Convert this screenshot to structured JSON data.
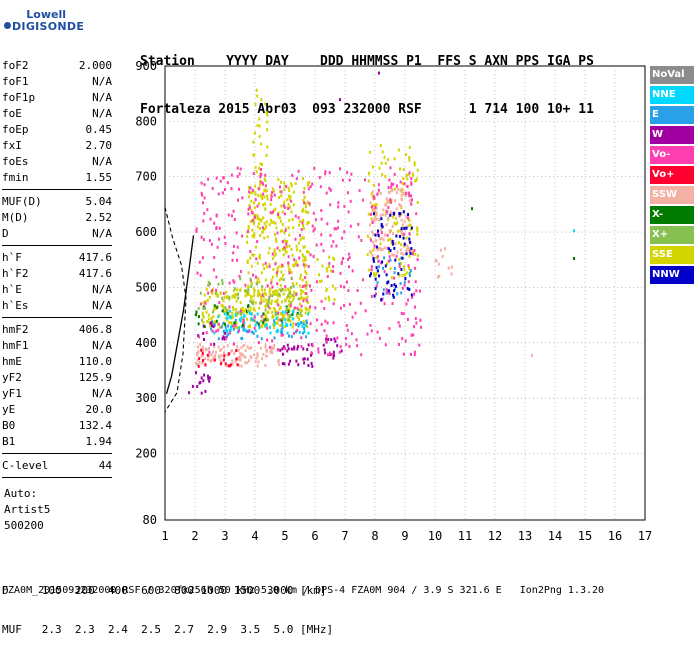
{
  "logo": {
    "line1": "Lowell",
    "line2": "DIGISONDE"
  },
  "header": {
    "labels": "Station    YYYY DAY    DDD HHMMSS P1  FFS S AXN PPS IGA PS",
    "values": "Fortaleza 2015 Abr03  093 232000 RSF      1 714 100 10+ 11"
  },
  "params": {
    "g1": [
      {
        "label": "foF2",
        "value": "2.000"
      },
      {
        "label": "foF1",
        "value": "N/A"
      },
      {
        "label": "foF1p",
        "value": "N/A"
      },
      {
        "label": "foE",
        "value": "N/A"
      },
      {
        "label": "foEp",
        "value": "0.45"
      },
      {
        "label": "fxI",
        "value": "2.70"
      },
      {
        "label": "foEs",
        "value": "N/A"
      },
      {
        "label": "fmin",
        "value": "1.55"
      }
    ],
    "g2": [
      {
        "label": "MUF(D)",
        "value": "5.04"
      },
      {
        "label": "M(D)",
        "value": "2.52"
      },
      {
        "label": "D",
        "value": "N/A"
      }
    ],
    "g3": [
      {
        "label": "h`F",
        "value": "417.6"
      },
      {
        "label": "h`F2",
        "value": "417.6"
      },
      {
        "label": "h`E",
        "value": "N/A"
      },
      {
        "label": "h`Es",
        "value": "N/A"
      }
    ],
    "g4": [
      {
        "label": "hmF2",
        "value": "406.8"
      },
      {
        "label": "hmF1",
        "value": "N/A"
      },
      {
        "label": "hmE",
        "value": "110.0"
      },
      {
        "label": "yF2",
        "value": "125.9"
      },
      {
        "label": "yF1",
        "value": "N/A"
      },
      {
        "label": "yE",
        "value": "20.0"
      },
      {
        "label": "B0",
        "value": "132.4"
      },
      {
        "label": "B1",
        "value": "1.94"
      }
    ],
    "g5": [
      {
        "label": "C-level",
        "value": "44"
      }
    ],
    "auto": [
      "Auto:",
      "Artist5",
      "500200"
    ]
  },
  "legend": [
    {
      "label": "NoVal",
      "color": "#8c8c8c"
    },
    {
      "label": "NNE",
      "color": "#00d8ff"
    },
    {
      "label": "E",
      "color": "#2aa0e8"
    },
    {
      "label": "W",
      "color": "#a000a0"
    },
    {
      "label": "Vo-",
      "color": "#ff3fb0"
    },
    {
      "label": "Vo+",
      "color": "#ff0030"
    },
    {
      "label": "SSW",
      "color": "#f4b0a4"
    },
    {
      "label": "X-",
      "color": "#007a00"
    },
    {
      "label": "X+",
      "color": "#86c050"
    },
    {
      "label": "SSE",
      "color": "#d4d400"
    },
    {
      "label": "NNW",
      "color": "#0000c8"
    }
  ],
  "footer": {
    "d_line": "D     100  200  400  600  800 1000 1500 3000 [km]",
    "muf_line": "MUF   2.3  2.3  2.4  2.5  2.7  2.9  3.5  5.0 [MHz]",
    "file_line": "FZA0M_2015093232000.RSF / 320fx256h 50 kHz 5.0 km / DPS-4 FZA0M 904 / 3.9 S 321.6 E   Ion2Png 1.3.20"
  },
  "chart_data": {
    "type": "scatter",
    "title": "",
    "xlabel": "",
    "ylabel": "",
    "xlim": [
      1,
      17
    ],
    "ylim": [
      80,
      900
    ],
    "x_ticks": [
      1,
      2,
      3,
      4,
      5,
      6,
      7,
      8,
      9,
      10,
      11,
      12,
      13,
      14,
      15,
      16,
      17
    ],
    "y_ticks": [
      80,
      200,
      300,
      400,
      500,
      600,
      700,
      800,
      900
    ],
    "grid": "dotted",
    "legend_position": "right",
    "series": [
      {
        "name": "SSE",
        "color": "#d4d400",
        "clusters": [
          {
            "x": [
              2.2,
              5.8
            ],
            "y": [
              430,
              500
            ],
            "weight": 0.9
          },
          {
            "x": [
              3.7,
              5.8
            ],
            "y": [
              480,
              700
            ],
            "weight": 0.5
          },
          {
            "x": [
              3.9,
              4.4
            ],
            "y": [
              600,
              870
            ],
            "weight": 0.3
          },
          {
            "x": [
              6.0,
              6.7
            ],
            "y": [
              480,
              560
            ],
            "weight": 0.3
          },
          {
            "x": [
              7.7,
              9.4
            ],
            "y": [
              520,
              760
            ],
            "weight": 0.25
          }
        ]
      },
      {
        "name": "NNE",
        "color": "#00d8ff",
        "clusters": [
          {
            "x": [
              2.6,
              5.8
            ],
            "y": [
              420,
              460
            ],
            "weight": 0.5
          }
        ]
      },
      {
        "name": "E",
        "color": "#2aa0e8",
        "clusters": [
          {
            "x": [
              2.4,
              5.8
            ],
            "y": [
              410,
              445
            ],
            "weight": 0.3
          },
          {
            "x": [
              7.9,
              9.2
            ],
            "y": [
              490,
              560
            ],
            "weight": 0.2
          }
        ]
      },
      {
        "name": "SSW",
        "color": "#f4b0a4",
        "clusters": [
          {
            "x": [
              2.0,
              4.8
            ],
            "y": [
              360,
              400
            ],
            "weight": 0.9
          },
          {
            "x": [
              7.8,
              9.2
            ],
            "y": [
              560,
              680
            ],
            "weight": 0.6
          },
          {
            "x": [
              9.8,
              10.6
            ],
            "y": [
              520,
              580
            ],
            "weight": 0.2
          }
        ]
      },
      {
        "name": "Vo+",
        "color": "#ff0030",
        "clusters": [
          {
            "x": [
              2.0,
              3.4
            ],
            "y": [
              360,
              390
            ],
            "weight": 0.4
          }
        ]
      },
      {
        "name": "W",
        "color": "#a000a0",
        "clusters": [
          {
            "x": [
              1.7,
              2.5
            ],
            "y": [
              310,
              350
            ],
            "weight": 0.4
          },
          {
            "x": [
              4.8,
              5.9
            ],
            "y": [
              360,
              400
            ],
            "weight": 0.6
          },
          {
            "x": [
              6.2,
              7.0
            ],
            "y": [
              370,
              410
            ],
            "weight": 0.4
          },
          {
            "x": [
              2.0,
              3.0
            ],
            "y": [
              400,
              440
            ],
            "weight": 0.3
          }
        ]
      },
      {
        "name": "Vo-",
        "color": "#ff3fb0",
        "clusters": [
          {
            "x": [
              2.0,
              9.5
            ],
            "y": [
              380,
              720
            ],
            "weight": 0.15
          }
        ]
      },
      {
        "name": "NNW",
        "color": "#0000c8",
        "clusters": [
          {
            "x": [
              7.8,
              9.2
            ],
            "y": [
              480,
              640
            ],
            "weight": 0.25
          }
        ]
      },
      {
        "name": "X-",
        "color": "#007a00",
        "clusters": [
          {
            "x": [
              1.8,
              5.5
            ],
            "y": [
              430,
              470
            ],
            "weight": 0.15
          }
        ]
      },
      {
        "name": "X+",
        "color": "#86c050",
        "clusters": [
          {
            "x": [
              2.0,
              5.5
            ],
            "y": [
              440,
              520
            ],
            "weight": 0.2
          }
        ]
      }
    ],
    "trace_solid": [
      [
        1.95,
        594
      ],
      [
        1.82,
        540
      ],
      [
        1.62,
        460
      ],
      [
        1.42,
        400
      ],
      [
        1.22,
        340
      ],
      [
        1.05,
        308
      ]
    ],
    "trace_dashed": [
      [
        1.0,
        645
      ],
      [
        1.25,
        590
      ],
      [
        1.55,
        540
      ],
      [
        1.7,
        480
      ],
      [
        1.6,
        380
      ],
      [
        1.4,
        310
      ],
      [
        1.0,
        275
      ]
    ],
    "isolated_points": [
      {
        "x": 11.2,
        "y": 645,
        "color": "#007a00"
      },
      {
        "x": 14.6,
        "y": 605,
        "color": "#00d8ff"
      },
      {
        "x": 14.6,
        "y": 555,
        "color": "#007a00"
      },
      {
        "x": 13.2,
        "y": 380,
        "color": "#f4b0a4"
      },
      {
        "x": 8.1,
        "y": 890,
        "color": "#a000a0"
      },
      {
        "x": 6.8,
        "y": 842,
        "color": "#a000a0"
      }
    ]
  }
}
